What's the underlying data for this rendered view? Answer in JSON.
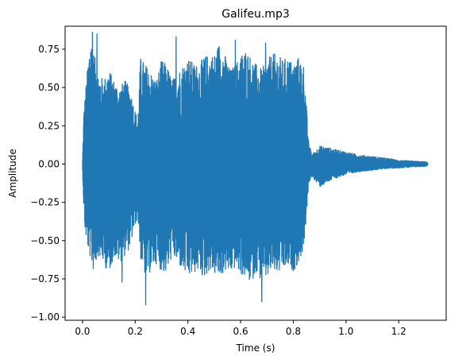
{
  "chart_data": {
    "type": "line",
    "title": "Galifeu.mp3",
    "xlabel": "Time (s)",
    "ylabel": "Amplitude",
    "xlim": [
      -0.066,
      1.38
    ],
    "ylim": [
      -1.02,
      0.9
    ],
    "xticks": [
      0.0,
      0.2,
      0.4,
      0.6,
      0.8,
      1.0,
      1.2
    ],
    "xtick_labels": [
      "0.0",
      "0.2",
      "0.4",
      "0.6",
      "0.8",
      "1.0",
      "1.2"
    ],
    "yticks": [
      0.75,
      0.5,
      0.25,
      0.0,
      -0.25,
      -0.5,
      -0.75,
      -1.0
    ],
    "ytick_labels": [
      "0.75",
      "0.50",
      "0.25",
      "0.00",
      "−0.25",
      "−0.50",
      "−0.75",
      "−1.00"
    ],
    "grid": false,
    "legend": "none",
    "series": [
      {
        "color": "#1f77b4",
        "envelope": {
          "t": [
            0.0,
            0.005,
            0.01,
            0.02,
            0.03,
            0.04,
            0.06,
            0.08,
            0.1,
            0.12,
            0.14,
            0.16,
            0.18,
            0.2,
            0.21,
            0.22,
            0.24,
            0.26,
            0.28,
            0.3,
            0.32,
            0.34,
            0.36,
            0.38,
            0.4,
            0.42,
            0.44,
            0.46,
            0.48,
            0.5,
            0.52,
            0.54,
            0.56,
            0.58,
            0.6,
            0.62,
            0.64,
            0.66,
            0.68,
            0.7,
            0.72,
            0.74,
            0.76,
            0.78,
            0.8,
            0.82,
            0.84,
            0.86,
            0.865,
            0.87,
            0.9,
            0.95,
            1.0,
            1.05,
            1.1,
            1.15,
            1.2,
            1.25,
            1.3,
            1.31
          ],
          "upper": [
            0.03,
            0.35,
            0.45,
            0.65,
            0.86,
            0.75,
            0.6,
            0.55,
            0.62,
            0.55,
            0.5,
            0.55,
            0.5,
            0.35,
            0.3,
            0.7,
            0.65,
            0.6,
            0.55,
            0.68,
            0.65,
            0.55,
            0.6,
            0.65,
            0.7,
            0.66,
            0.65,
            0.7,
            0.72,
            0.72,
            0.8,
            0.72,
            0.62,
            0.65,
            0.72,
            0.75,
            0.7,
            0.65,
            0.62,
            0.68,
            0.72,
            0.72,
            0.68,
            0.7,
            0.66,
            0.7,
            0.65,
            0.1,
            0.12,
            0.06,
            0.12,
            0.1,
            0.08,
            0.06,
            0.05,
            0.04,
            0.025,
            0.02,
            0.015,
            0.01
          ],
          "lower": [
            -0.03,
            -0.3,
            -0.45,
            -0.55,
            -0.62,
            -0.7,
            -0.6,
            -0.65,
            -0.72,
            -0.6,
            -0.65,
            -0.6,
            -0.55,
            -0.4,
            -0.35,
            -0.62,
            -0.75,
            -0.7,
            -0.65,
            -0.7,
            -0.72,
            -0.6,
            -0.65,
            -0.7,
            -0.75,
            -0.72,
            -0.7,
            -0.75,
            -0.7,
            -0.72,
            -0.75,
            -0.7,
            -0.72,
            -0.68,
            -0.72,
            -0.75,
            -0.78,
            -0.7,
            -0.78,
            -0.75,
            -0.7,
            -0.72,
            -0.7,
            -0.68,
            -0.7,
            -0.65,
            -0.55,
            -0.12,
            -0.1,
            -0.08,
            -0.15,
            -0.1,
            -0.07,
            -0.05,
            -0.04,
            -0.03,
            -0.025,
            -0.02,
            -0.015,
            -0.01
          ]
        },
        "peaks": [
          {
            "t": 0.038,
            "v": 0.86
          },
          {
            "t": 0.055,
            "v": 0.85
          },
          {
            "t": 0.15,
            "v": -0.77
          },
          {
            "t": 0.24,
            "v": -0.92
          },
          {
            "t": 0.355,
            "v": 0.83
          },
          {
            "t": 0.58,
            "v": 0.81
          },
          {
            "t": 0.68,
            "v": -0.9
          },
          {
            "t": 0.695,
            "v": 0.79
          }
        ]
      }
    ]
  }
}
